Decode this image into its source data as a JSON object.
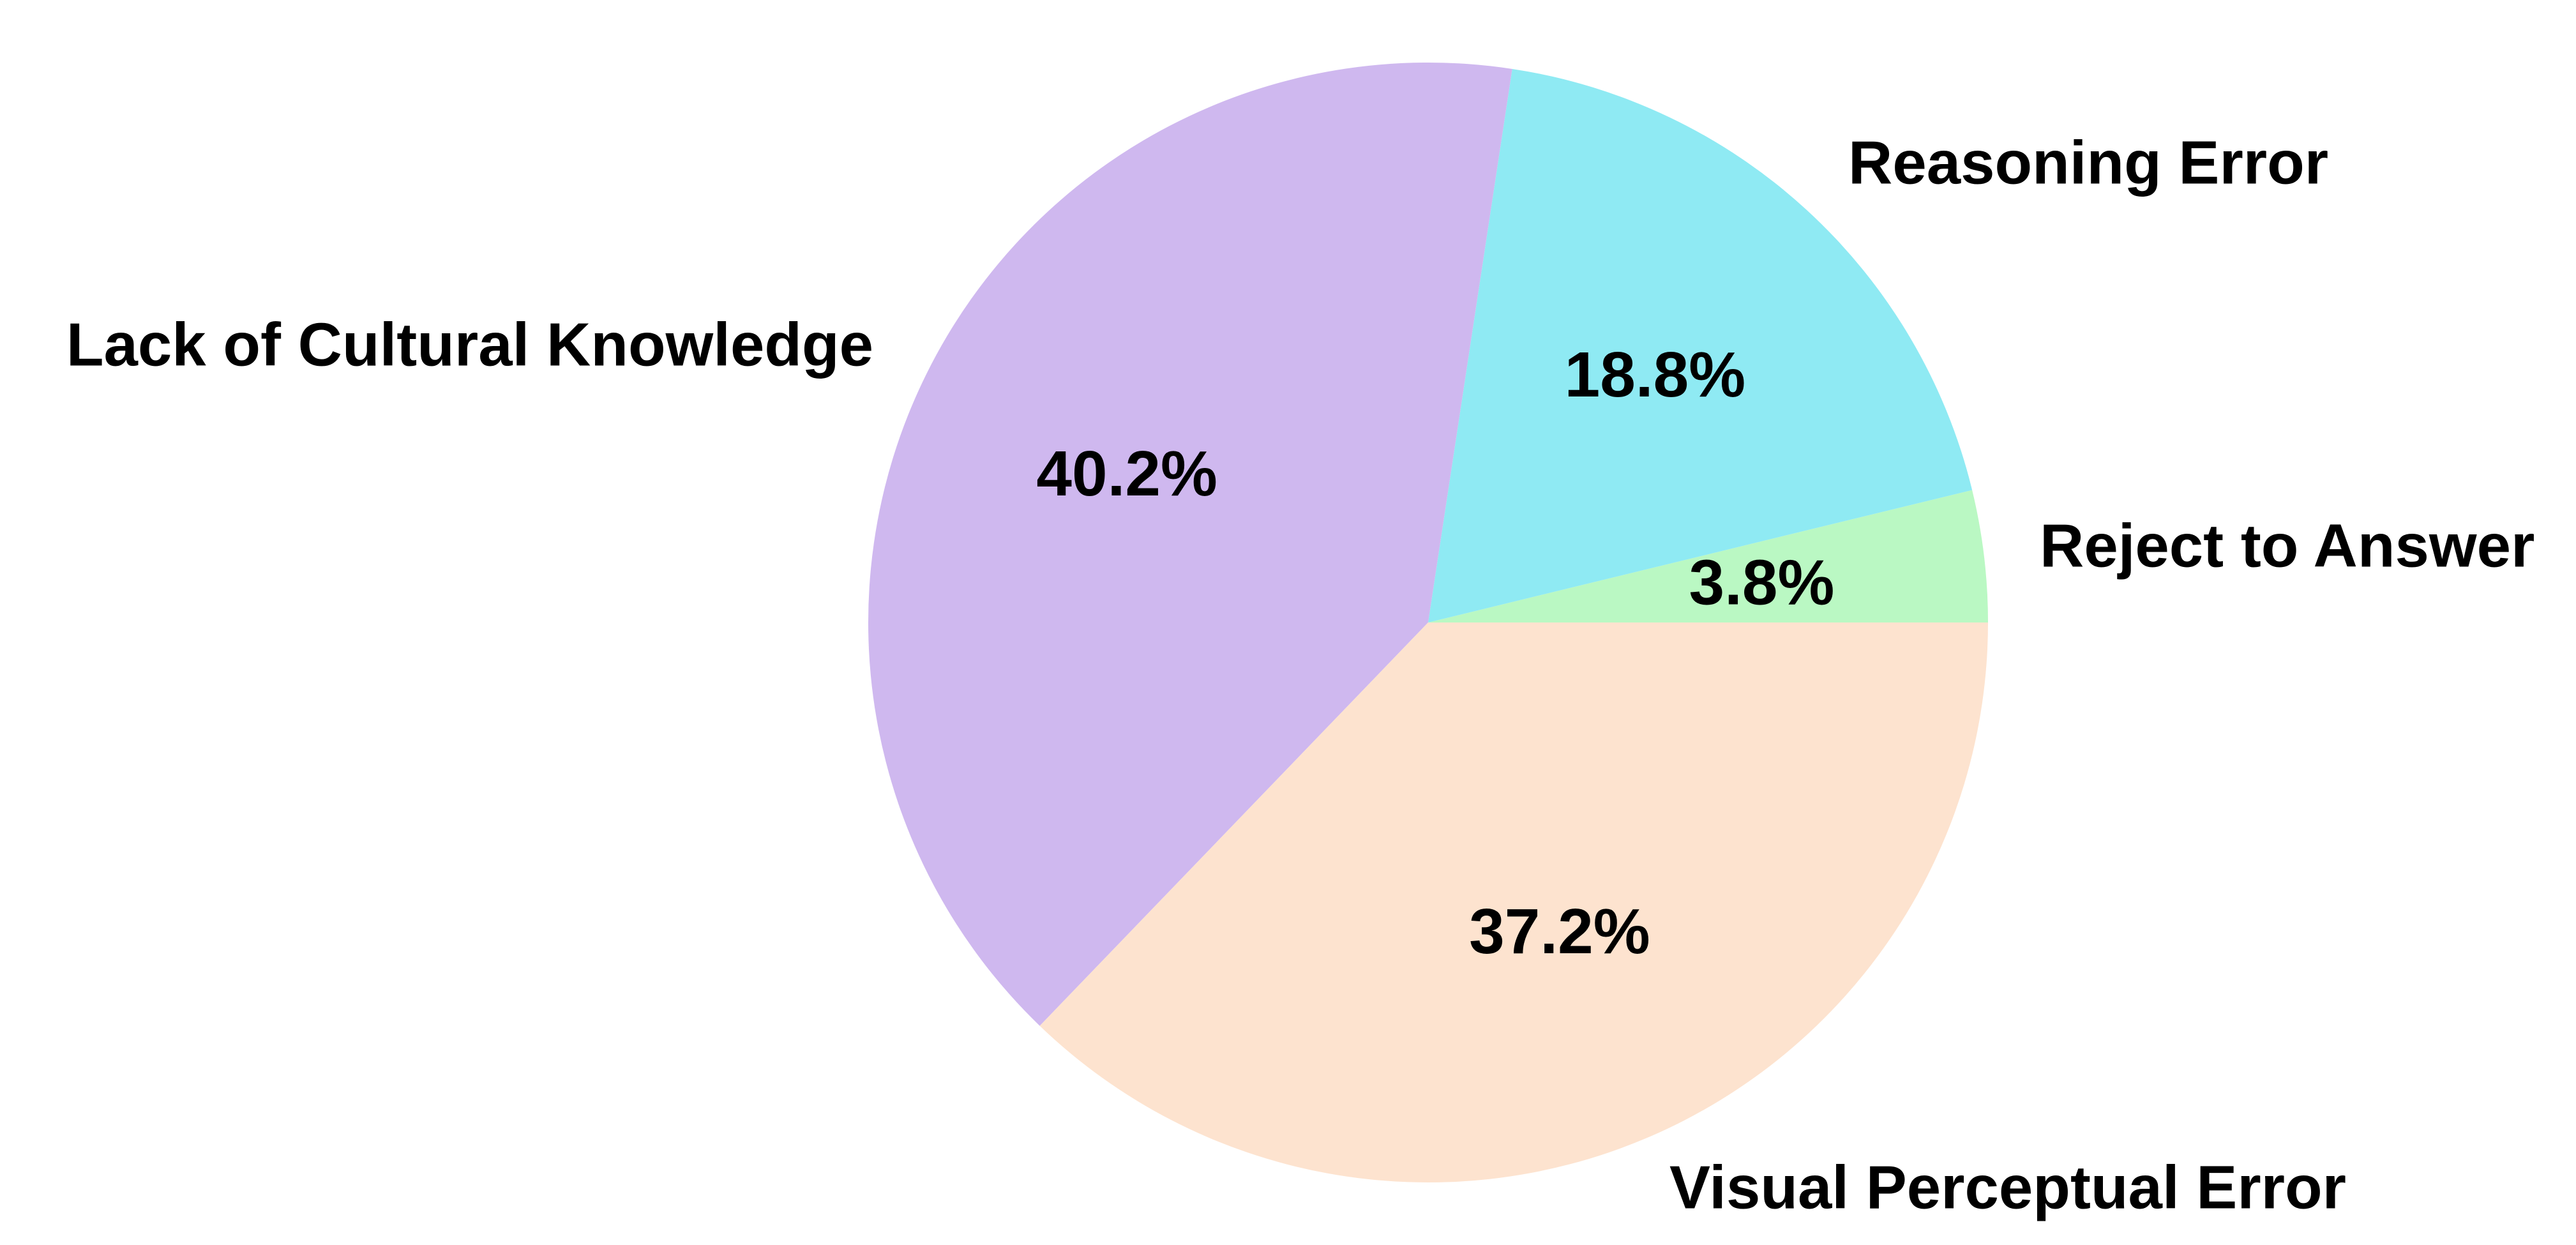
{
  "chart_data": {
    "type": "pie",
    "start_angle_deg": 0,
    "direction": "counterclockwise",
    "slices": [
      {
        "label": "Reject to Answer",
        "value": 3.8,
        "value_label": "3.8%",
        "color": "#baf8c3"
      },
      {
        "label": "Reasoning Error",
        "value": 18.8,
        "value_label": "18.8%",
        "color": "#8feaf3"
      },
      {
        "label": "Lack of Cultural Knowledge",
        "value": 40.2,
        "value_label": "40.2%",
        "color": "#cfb8ef"
      },
      {
        "label": "Visual Perceptual Error",
        "value": 37.2,
        "value_label": "37.2%",
        "color": "#fde3cf"
      }
    ]
  }
}
